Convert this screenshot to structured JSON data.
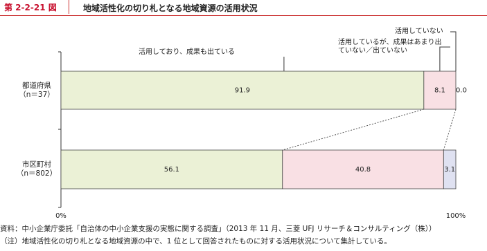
{
  "header": {
    "figure_number": "第 2-2-21 図",
    "title": "地域活性化の切り札となる地域資源の活用状況"
  },
  "chart_data": {
    "type": "stacked-bar-horizontal",
    "categories": [
      "都道府県\n（n＝37）",
      "市区町村\n（n＝802）"
    ],
    "series": [
      {
        "name": "活用しており、成果も出ている",
        "color": "#ebf1d6",
        "values": [
          91.9,
          56.1
        ]
      },
      {
        "name": "活用しているが、成果はあまり出ていない／出ていない",
        "color": "#f9e0e4",
        "values": [
          8.1,
          40.8
        ]
      },
      {
        "name": "活用していない",
        "color": "#dfe1f1",
        "values": [
          0.0,
          3.1
        ],
        "value_labels": [
          "0.0",
          "3.1"
        ]
      }
    ],
    "xlim": [
      0,
      100
    ],
    "xticks": [
      {
        "value": 0,
        "label": "0%"
      },
      {
        "value": 100,
        "label": "100%"
      }
    ]
  },
  "footer": {
    "source": "資料：中小企業庁委託「自治体の中小企業支援の実態に関する調査」（2013 年 11 月、三菱 UFJ リサーチ＆コンサルティング（株））",
    "note": "（注）地域活性化の切り札となる地域資源の中で、1 位として回答されたものに対する活用状況について集計している。"
  }
}
